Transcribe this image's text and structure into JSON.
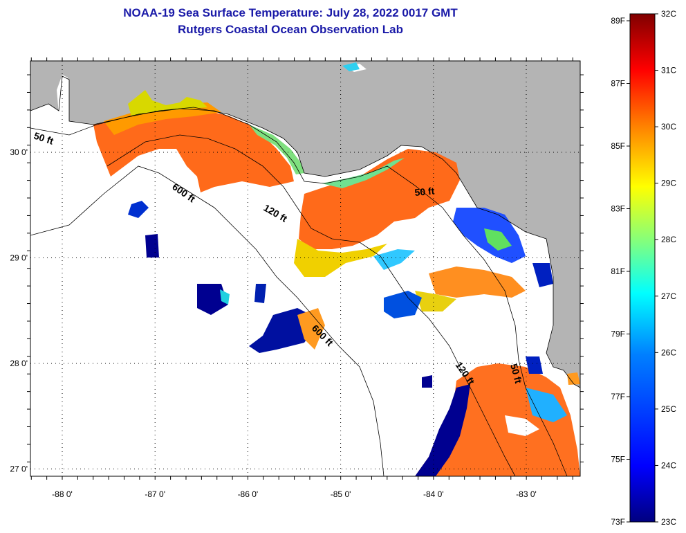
{
  "header": {
    "title": "NOAA-19 Sea Surface Temperature:  July 28, 2022 0017 GMT",
    "subtitle": "Rutgers Coastal Ocean Observation Lab"
  },
  "axes": {
    "lon_ticks": [
      -88,
      -87,
      -86,
      -85,
      -84,
      -83
    ],
    "lon_labels": [
      "-88 0'",
      "-87 0'",
      "-86 0'",
      "-85 0'",
      "-84 0'",
      "-83 0'"
    ],
    "lat_ticks": [
      30,
      29,
      28,
      27
    ],
    "lat_labels": [
      "30 0'",
      "29 0'",
      "28 0'",
      "27 0'"
    ]
  },
  "contours": {
    "labels": [
      "50 ft",
      "600 ft",
      "120 ft",
      "50 ft",
      "600 ft",
      "120 ft",
      "50 ft"
    ]
  },
  "colorbar": {
    "fahrenheit_labels": [
      "89F",
      "87F",
      "85F",
      "83F",
      "81F",
      "79F",
      "77F",
      "75F",
      "73F"
    ],
    "celsius_labels": [
      "32C",
      "31C",
      "30C",
      "29C",
      "28C",
      "27C",
      "26C",
      "25C",
      "24C",
      "23C"
    ],
    "colors": [
      "#800000",
      "#ff0000",
      "#ff8000",
      "#ffff00",
      "#80ff80",
      "#00ffff",
      "#0080ff",
      "#0000ff",
      "#000080"
    ]
  },
  "colors": {
    "land": "#b4b4b4",
    "water": "#ffffff",
    "title": "#1a1aa8"
  }
}
